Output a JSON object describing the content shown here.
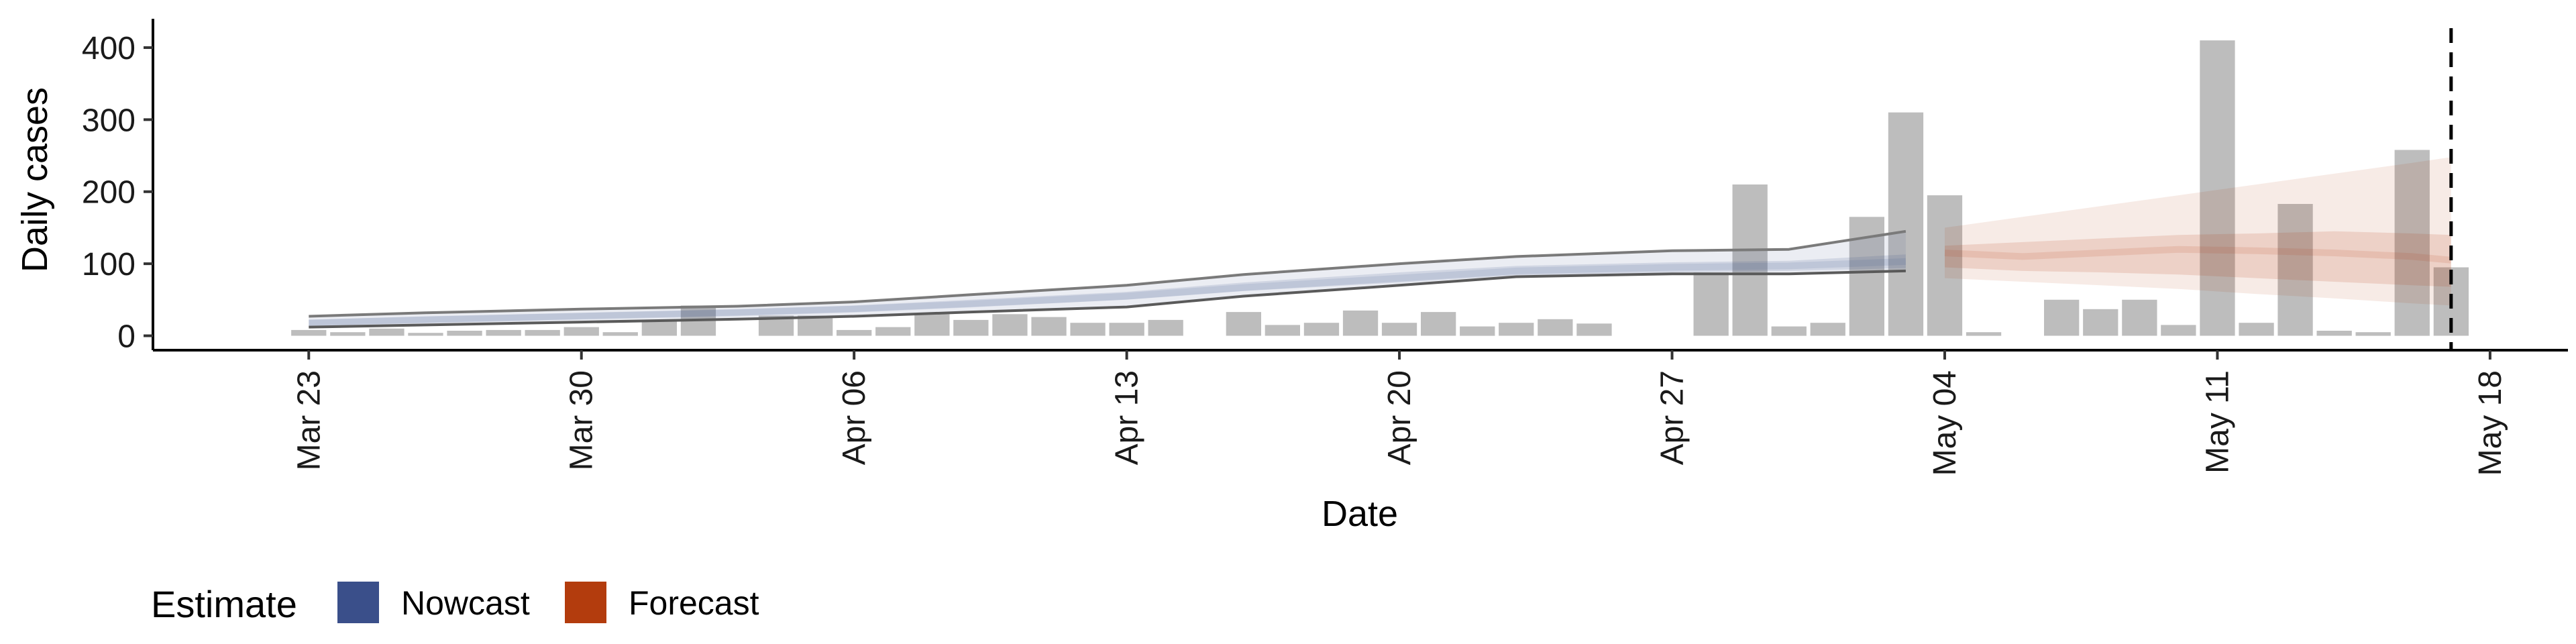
{
  "chart_data": {
    "type": "bar",
    "xlabel": "Date",
    "ylabel": "Daily cases",
    "ylim": [
      -20,
      440
    ],
    "yticks": [
      0,
      100,
      200,
      300,
      400
    ],
    "x_ticks": [
      {
        "label": "Mar 23",
        "date": "2020-03-23"
      },
      {
        "label": "Mar 30",
        "date": "2020-03-30"
      },
      {
        "label": "Apr 06",
        "date": "2020-04-06"
      },
      {
        "label": "Apr 13",
        "date": "2020-04-13"
      },
      {
        "label": "Apr 20",
        "date": "2020-04-20"
      },
      {
        "label": "Apr 27",
        "date": "2020-04-27"
      },
      {
        "label": "May 04",
        "date": "2020-05-04"
      },
      {
        "label": "May 11",
        "date": "2020-05-11"
      },
      {
        "label": "May 18",
        "date": "2020-05-18"
      }
    ],
    "xlim": [
      "2020-03-19",
      "2020-05-20"
    ],
    "grid": false,
    "reference_line": {
      "date": "2020-05-17",
      "style": "dashed"
    },
    "bar_color": "#bdbdbd",
    "bars": {
      "dates": [
        "2020-03-23",
        "2020-03-24",
        "2020-03-25",
        "2020-03-26",
        "2020-03-27",
        "2020-03-28",
        "2020-03-29",
        "2020-03-30",
        "2020-03-31",
        "2020-04-01",
        "2020-04-02",
        "2020-04-03",
        "2020-04-04",
        "2020-04-05",
        "2020-04-06",
        "2020-04-07",
        "2020-04-08",
        "2020-04-09",
        "2020-04-10",
        "2020-04-11",
        "2020-04-12",
        "2020-04-13",
        "2020-04-14",
        "2020-04-15",
        "2020-04-16",
        "2020-04-17",
        "2020-04-18",
        "2020-04-19",
        "2020-04-20",
        "2020-04-21",
        "2020-04-22",
        "2020-04-23",
        "2020-04-24",
        "2020-04-25",
        "2020-04-26",
        "2020-04-27",
        "2020-04-28",
        "2020-04-29",
        "2020-04-30",
        "2020-05-01",
        "2020-05-02",
        "2020-05-03",
        "2020-05-04",
        "2020-05-05",
        "2020-05-06",
        "2020-05-07",
        "2020-05-08",
        "2020-05-09",
        "2020-05-10",
        "2020-05-11",
        "2020-05-12",
        "2020-05-13",
        "2020-05-14",
        "2020-05-15",
        "2020-05-16",
        "2020-05-17"
      ],
      "values": [
        8,
        5,
        10,
        4,
        7,
        8,
        8,
        12,
        5,
        20,
        42,
        0,
        28,
        28,
        8,
        12,
        30,
        22,
        30,
        26,
        18,
        18,
        22,
        0,
        33,
        15,
        18,
        35,
        18,
        33,
        13,
        18,
        23,
        17,
        0,
        0,
        88,
        210,
        13,
        18,
        165,
        310,
        195,
        5,
        0,
        50,
        37,
        50,
        15,
        410,
        18,
        183,
        7,
        5,
        258,
        95
      ]
    },
    "series": [
      {
        "name": "Nowcast",
        "color": "#3a4f8a",
        "dates": [
          "2020-03-23",
          "2020-03-26",
          "2020-03-30",
          "2020-04-03",
          "2020-04-06",
          "2020-04-09",
          "2020-04-13",
          "2020-04-16",
          "2020-04-20",
          "2020-04-23",
          "2020-04-27",
          "2020-04-30",
          "2020-05-03"
        ],
        "median": [
          18,
          22,
          27,
          32,
          37,
          44,
          55,
          67,
          80,
          90,
          95,
          97,
          103
        ],
        "lower50": [
          14,
          18,
          23,
          28,
          33,
          40,
          50,
          62,
          74,
          84,
          88,
          90,
          94
        ],
        "upper50": [
          22,
          27,
          32,
          37,
          42,
          50,
          61,
          74,
          88,
          97,
          102,
          104,
          113
        ],
        "lower90": [
          12,
          15,
          19,
          23,
          27,
          33,
          40,
          55,
          70,
          82,
          86,
          86,
          90
        ],
        "upper90": [
          27,
          32,
          37,
          41,
          47,
          57,
          70,
          85,
          100,
          110,
          118,
          120,
          145
        ]
      },
      {
        "name": "Forecast",
        "color": "#b33c0d",
        "dates": [
          "2020-05-04",
          "2020-05-06",
          "2020-05-08",
          "2020-05-10",
          "2020-05-12",
          "2020-05-14",
          "2020-05-16",
          "2020-05-17"
        ],
        "median": [
          115,
          110,
          115,
          120,
          118,
          115,
          110,
          105
        ],
        "lower50": [
          95,
          90,
          88,
          85,
          80,
          75,
          70,
          68
        ],
        "upper50": [
          125,
          130,
          135,
          140,
          142,
          145,
          142,
          140
        ],
        "lower90": [
          80,
          75,
          70,
          65,
          58,
          52,
          45,
          42
        ],
        "upper90": [
          150,
          165,
          180,
          195,
          210,
          225,
          240,
          248
        ]
      }
    ],
    "legend": {
      "title": "Estimate",
      "position": "bottom-left",
      "items": [
        {
          "label": "Nowcast",
          "color": "#3a4f8a"
        },
        {
          "label": "Forecast",
          "color": "#b33c0d"
        }
      ]
    }
  }
}
